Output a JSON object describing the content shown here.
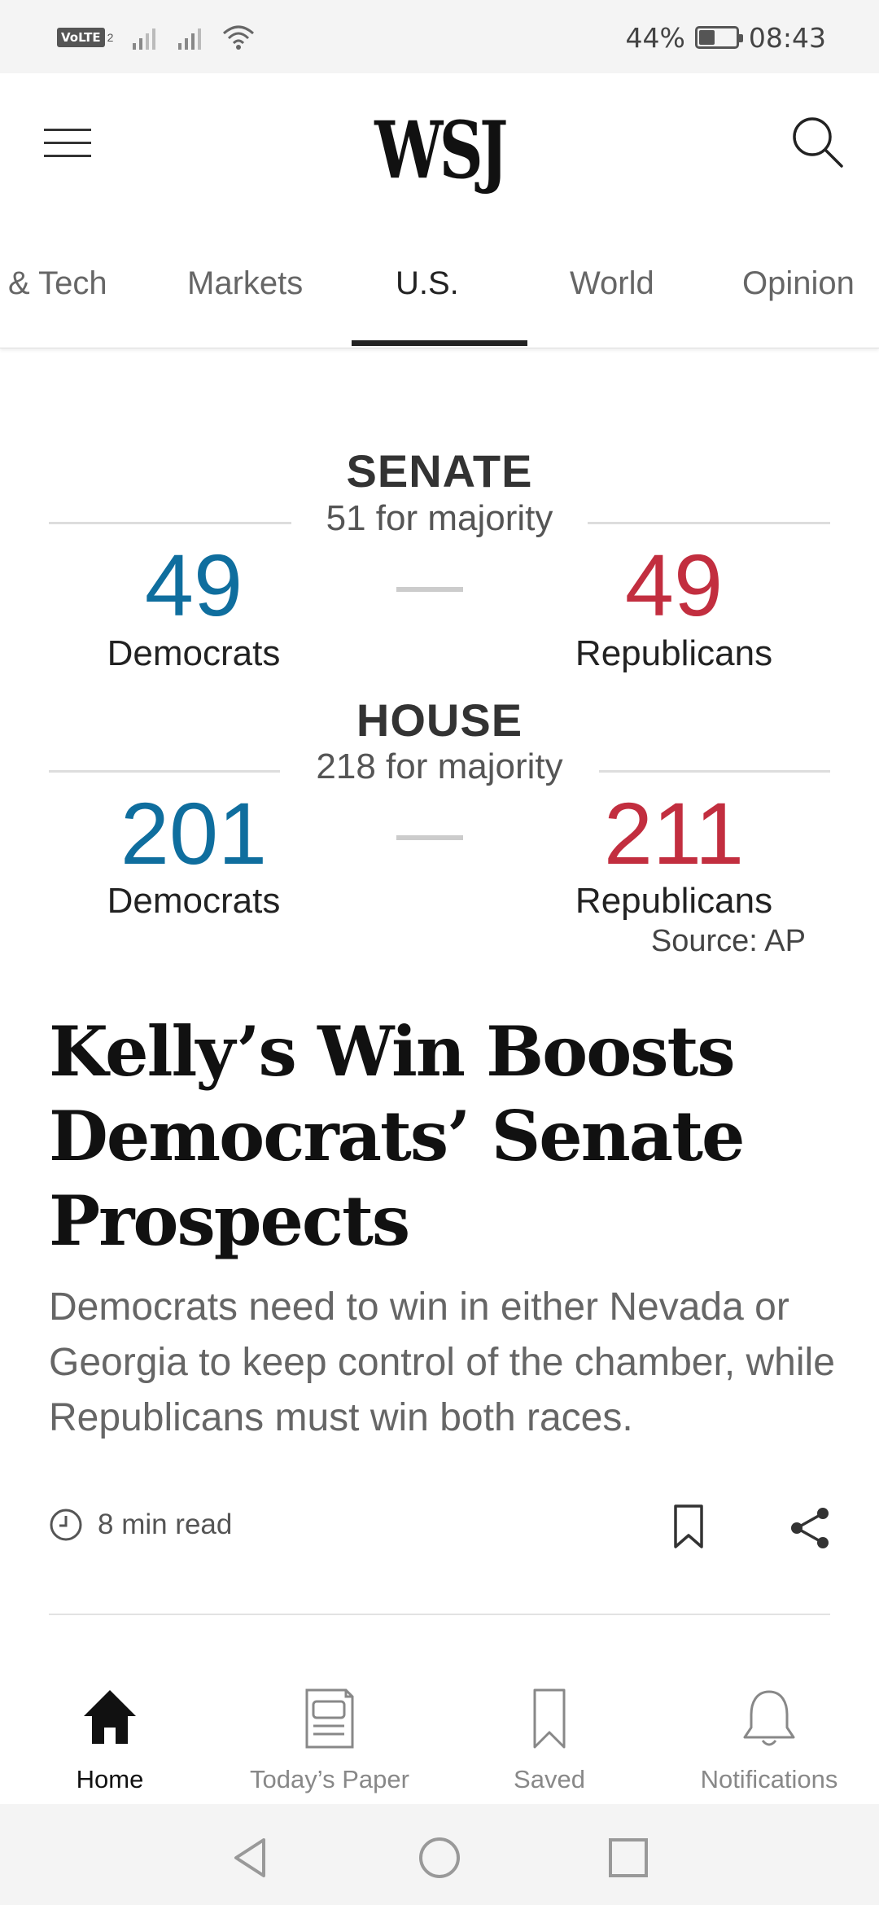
{
  "status_bar": {
    "volte": "VoLTE",
    "sim": "2",
    "battery_percent_label": "44%",
    "battery_level": 0.44,
    "time": "08:43"
  },
  "header": {
    "logo": "WSJ",
    "menu_icon": "hamburger-menu-icon",
    "search_icon": "search-icon"
  },
  "tabs": [
    {
      "label": "& Tech"
    },
    {
      "label": "Markets"
    },
    {
      "label": "U.S."
    },
    {
      "label": "World"
    },
    {
      "label": "Opinion"
    }
  ],
  "active_tab": "U.S.",
  "election": {
    "senate": {
      "title": "SENATE",
      "majority": "51 for majority",
      "dem_count": "49",
      "dem_label": "Democrats",
      "rep_count": "49",
      "rep_label": "Republicans"
    },
    "house": {
      "title": "HOUSE",
      "majority": "218 for majority",
      "dem_count": "201",
      "dem_label": "Democrats",
      "rep_count": "211",
      "rep_label": "Republicans"
    },
    "source": "Source: AP",
    "colors": {
      "democrat": "#0f6e9e",
      "republican": "#c22e3f"
    }
  },
  "article": {
    "headline": "Kelly’s Win Boosts Democrats’ Senate Prospects",
    "summary": "Democrats need to win in either Nevada or Georgia to keep control of the chamber, while Republicans must win both races.",
    "read_time": "8 min read",
    "actions": [
      "bookmark-icon",
      "share-icon"
    ]
  },
  "bottom_nav": [
    {
      "label": "Home",
      "icon": "home-icon",
      "active": true
    },
    {
      "label": "Today’s Paper",
      "icon": "newspaper-icon",
      "active": false
    },
    {
      "label": "Saved",
      "icon": "bookmark-icon",
      "active": false
    },
    {
      "label": "Notifications",
      "icon": "bell-icon",
      "active": false
    }
  ],
  "system_nav": [
    "back-icon",
    "home-circle-icon",
    "recents-icon"
  ]
}
